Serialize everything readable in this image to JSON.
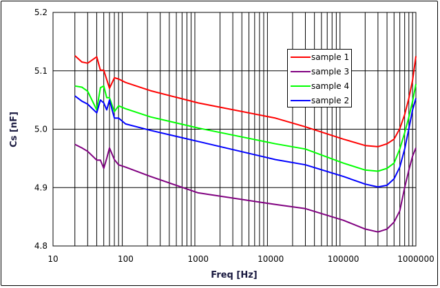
{
  "chart_data": {
    "type": "line",
    "title": "",
    "xlabel": "Freq [Hz]",
    "ylabel": "Cs [nF]",
    "xscale": "log",
    "xlim": [
      10,
      1000000
    ],
    "ylim": [
      4.8,
      5.2
    ],
    "grid": true,
    "legend_placement": "top-right",
    "xticks": [
      "10",
      "100",
      "1000",
      "10000",
      "100000",
      "1000000"
    ],
    "yticks": [
      "4.8",
      "4.9",
      "5.0",
      "5.1",
      "5.2"
    ],
    "x": [
      20,
      25,
      30,
      40,
      45,
      50,
      55,
      60,
      70,
      80,
      100,
      220,
      1000,
      11600,
      30000,
      100000,
      200000,
      300000,
      400000,
      500000,
      600000,
      700000,
      800000,
      900000,
      1000000
    ],
    "series": [
      {
        "name": "sample 1",
        "color": "#ff0000",
        "values": [
          5.126,
          5.115,
          5.113,
          5.124,
          5.101,
          5.101,
          5.085,
          5.07,
          5.088,
          5.086,
          5.08,
          5.066,
          5.045,
          5.019,
          5.004,
          4.983,
          4.972,
          4.97,
          4.975,
          4.983,
          5.001,
          5.025,
          5.053,
          5.084,
          5.125
        ]
      },
      {
        "name": "sample 3",
        "color": "#800080",
        "values": [
          4.974,
          4.968,
          4.962,
          4.947,
          4.947,
          4.933,
          4.95,
          4.968,
          4.948,
          4.939,
          4.935,
          4.919,
          4.891,
          4.871,
          4.864,
          4.844,
          4.829,
          4.824,
          4.829,
          4.841,
          4.86,
          4.9,
          4.93,
          4.954,
          4.968
        ]
      },
      {
        "name": "sample 4",
        "color": "#00ff00",
        "values": [
          5.074,
          5.072,
          5.065,
          5.033,
          5.071,
          5.074,
          5.054,
          5.054,
          5.03,
          5.04,
          5.035,
          5.021,
          5.002,
          4.975,
          4.966,
          4.942,
          4.93,
          4.928,
          4.933,
          4.942,
          4.966,
          4.994,
          5.021,
          5.048,
          5.077
        ]
      },
      {
        "name": "sample 2",
        "color": "#0000ff",
        "values": [
          5.057,
          5.048,
          5.043,
          5.028,
          5.05,
          5.045,
          5.033,
          5.05,
          5.019,
          5.019,
          5.009,
          4.998,
          4.979,
          4.948,
          4.939,
          4.919,
          4.906,
          4.901,
          4.904,
          4.915,
          4.935,
          4.966,
          5.001,
          5.033,
          5.053
        ]
      }
    ]
  }
}
